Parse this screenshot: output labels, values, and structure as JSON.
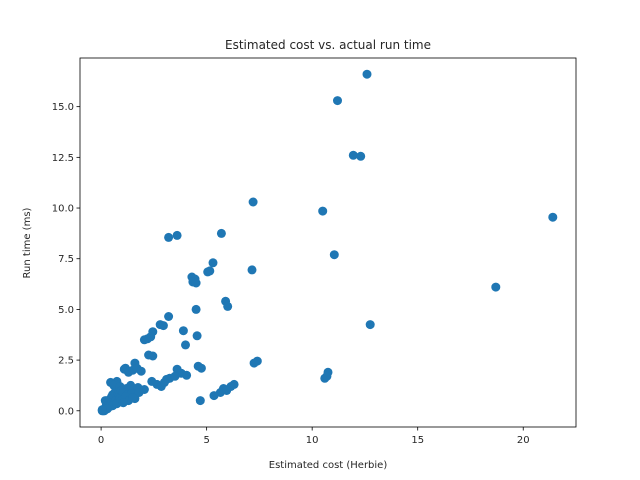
{
  "chart_data": {
    "type": "scatter",
    "title": "Estimated cost vs. actual run time",
    "xlabel": "Estimated cost (Herbie)",
    "ylabel": "Run time (ms)",
    "xlim": [
      -1.0,
      22.5
    ],
    "ylim": [
      -0.8,
      17.4
    ],
    "xticks": [
      0,
      5,
      10,
      15,
      20
    ],
    "xtick_labels": [
      "0",
      "5",
      "10",
      "15",
      "20"
    ],
    "yticks": [
      0,
      2.5,
      5,
      7.5,
      10,
      12.5,
      15
    ],
    "ytick_labels": [
      "0.0",
      "2.5",
      "5.0",
      "7.5",
      "10.0",
      "12.5",
      "15.0"
    ],
    "grid": false,
    "color": "#1f77b4",
    "series": [
      {
        "x": [
          12.6,
          11.2,
          11.95,
          12.3,
          21.4,
          7.2,
          10.5,
          5.7,
          3.2,
          3.6,
          11.05,
          7.15,
          5.3,
          5.05,
          5.15,
          4.3,
          4.45,
          4.35,
          4.5,
          18.7,
          5.9,
          6.0,
          4.5,
          12.75,
          3.2,
          2.8,
          2.95,
          2.45,
          2.2,
          2.05,
          2.35,
          3.9,
          4.0,
          4.55,
          4.6,
          4.75,
          2.25,
          2.45,
          1.6,
          1.15,
          3.6,
          3.8,
          4.05,
          10.75,
          10.6,
          10.7,
          7.4,
          7.25,
          6.3,
          6.15,
          5.8,
          5.65,
          5.95,
          5.35,
          4.7,
          0.45,
          0.75,
          0.7,
          0.6,
          0.9,
          1.1,
          1.3,
          1.5,
          1.7,
          1.9,
          2.05,
          2.4,
          2.65,
          2.85,
          3.1,
          3.25,
          3.5,
          3.0,
          1.2,
          1.4,
          1.55,
          1.75,
          0.2,
          0.25,
          0.3,
          0.35,
          0.4,
          0.5,
          0.55,
          0.65,
          0.8,
          0.85,
          0.95,
          1.0,
          1.05,
          1.1,
          1.2,
          1.25,
          1.35,
          1.45,
          1.6,
          1.8,
          0.05,
          0.1,
          0.15,
          0.2,
          0.3,
          0.35,
          0.45,
          0.5,
          0.6,
          0.7,
          0.8,
          0.9,
          1.0,
          1.15,
          1.3,
          1.5,
          0.1,
          0.2,
          0.25,
          0.4,
          0.55,
          0.75,
          1.05,
          0.15,
          0.3,
          0.05
        ],
        "y": [
          16.6,
          15.3,
          12.6,
          12.55,
          9.55,
          10.3,
          9.85,
          8.75,
          8.55,
          8.65,
          7.7,
          6.95,
          7.3,
          6.85,
          6.9,
          6.6,
          6.5,
          6.35,
          6.3,
          6.1,
          5.4,
          5.15,
          5.0,
          4.25,
          4.65,
          4.25,
          4.2,
          3.9,
          3.55,
          3.5,
          3.65,
          3.95,
          3.25,
          3.7,
          2.2,
          2.1,
          2.75,
          2.7,
          2.35,
          2.1,
          2.05,
          1.85,
          1.75,
          1.9,
          1.6,
          1.7,
          2.45,
          2.35,
          1.3,
          1.2,
          1.1,
          0.9,
          1.0,
          0.75,
          0.5,
          1.4,
          1.45,
          1.3,
          1.25,
          1.2,
          2.05,
          1.9,
          2.0,
          2.1,
          1.95,
          1.05,
          1.45,
          1.3,
          1.2,
          1.55,
          1.6,
          1.7,
          1.4,
          1.1,
          1.25,
          1.05,
          1.15,
          0.5,
          0.35,
          0.3,
          0.45,
          0.55,
          0.7,
          0.8,
          0.9,
          0.85,
          0.95,
          1.0,
          0.75,
          0.9,
          0.55,
          0.65,
          0.8,
          0.7,
          0.85,
          0.6,
          0.9,
          0.0,
          0.05,
          0.1,
          0.15,
          0.2,
          0.25,
          0.3,
          0.4,
          0.35,
          0.5,
          0.45,
          0.6,
          0.55,
          0.7,
          0.5,
          0.65,
          0.0,
          0.05,
          0.1,
          0.2,
          0.25,
          0.35,
          0.4,
          0.0,
          0.1,
          0.05
        ]
      }
    ]
  }
}
